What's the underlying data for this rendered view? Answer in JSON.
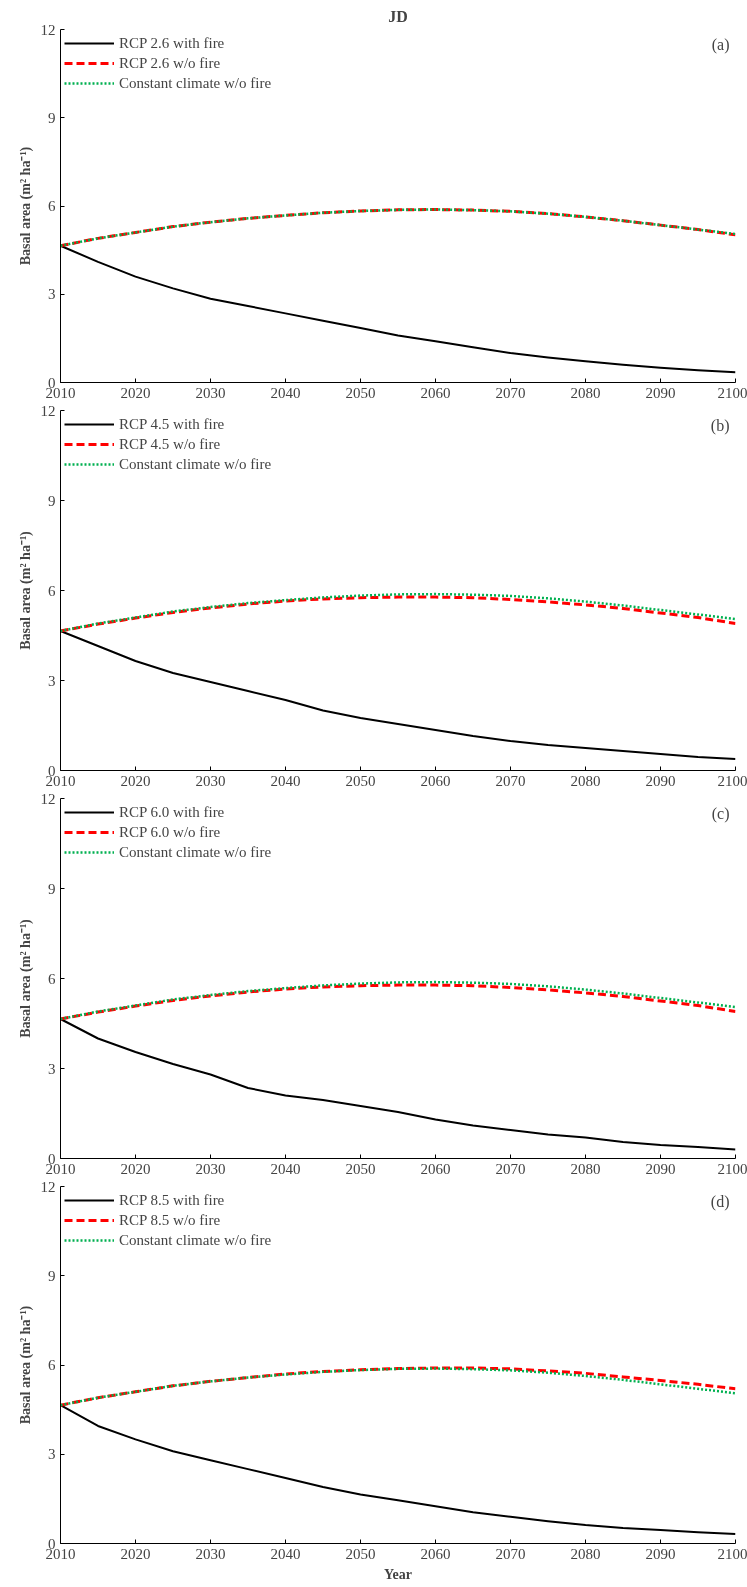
{
  "chart_data": [
    {
      "type": "line",
      "title": "JD",
      "ylabel": "Basal area (m² ha⁻¹)",
      "annotations": [
        "(a)"
      ],
      "legend": "top left",
      "grid": false,
      "x": [
        2010,
        2015,
        2020,
        2025,
        2030,
        2035,
        2040,
        2045,
        2050,
        2055,
        2060,
        2065,
        2070,
        2075,
        2080,
        2085,
        2090,
        2095,
        2100
      ],
      "xlim": [
        2010,
        2100
      ],
      "xticks": [
        2010,
        2020,
        2030,
        2040,
        2050,
        2060,
        2070,
        2080,
        2090,
        2100
      ],
      "ylim": [
        0,
        12
      ],
      "yticks": [
        0,
        3,
        6,
        9,
        12
      ],
      "series": [
        {
          "name": "RCP 2.6 with fire",
          "color": "#000000",
          "line_style": "solid",
          "values": [
            4.65,
            4.1,
            3.6,
            3.2,
            2.85,
            2.6,
            2.35,
            2.1,
            1.85,
            1.6,
            1.4,
            1.2,
            1.0,
            0.85,
            0.72,
            0.6,
            0.5,
            0.42,
            0.35
          ]
        },
        {
          "name": "RCP 2.6 w/o fire",
          "color": "#ff0000",
          "line_style": "dashed",
          "values": [
            4.65,
            4.9,
            5.1,
            5.3,
            5.45,
            5.58,
            5.68,
            5.77,
            5.83,
            5.87,
            5.88,
            5.86,
            5.82,
            5.74,
            5.63,
            5.5,
            5.35,
            5.2,
            5.02
          ]
        },
        {
          "name": "Constant climate w/o fire",
          "color": "#00b050",
          "line_style": "dotted",
          "values": [
            4.65,
            4.9,
            5.1,
            5.3,
            5.45,
            5.58,
            5.68,
            5.77,
            5.83,
            5.87,
            5.88,
            5.86,
            5.82,
            5.74,
            5.63,
            5.5,
            5.35,
            5.2,
            5.05
          ]
        }
      ]
    },
    {
      "type": "line",
      "ylabel": "Basal area (m² ha⁻¹)",
      "annotations": [
        "(b)"
      ],
      "legend": "top left",
      "grid": false,
      "x": [
        2010,
        2015,
        2020,
        2025,
        2030,
        2035,
        2040,
        2045,
        2050,
        2055,
        2060,
        2065,
        2070,
        2075,
        2080,
        2085,
        2090,
        2095,
        2100
      ],
      "xlim": [
        2010,
        2100
      ],
      "xticks": [
        2010,
        2020,
        2030,
        2040,
        2050,
        2060,
        2070,
        2080,
        2090,
        2100
      ],
      "ylim": [
        0,
        12
      ],
      "yticks": [
        0,
        3,
        6,
        9,
        12
      ],
      "series": [
        {
          "name": "RCP 4.5 with fire",
          "color": "#000000",
          "line_style": "solid",
          "values": [
            4.65,
            4.15,
            3.65,
            3.25,
            2.95,
            2.65,
            2.35,
            2.0,
            1.75,
            1.55,
            1.35,
            1.15,
            0.98,
            0.85,
            0.75,
            0.65,
            0.55,
            0.45,
            0.38
          ]
        },
        {
          "name": "RCP 4.5 w/o fire",
          "color": "#ff0000",
          "line_style": "dashed",
          "values": [
            4.65,
            4.88,
            5.08,
            5.27,
            5.42,
            5.55,
            5.65,
            5.72,
            5.76,
            5.78,
            5.78,
            5.76,
            5.7,
            5.62,
            5.52,
            5.4,
            5.25,
            5.1,
            4.9
          ]
        },
        {
          "name": "Constant climate w/o fire",
          "color": "#00b050",
          "line_style": "dotted",
          "values": [
            4.65,
            4.9,
            5.1,
            5.3,
            5.45,
            5.58,
            5.68,
            5.77,
            5.83,
            5.87,
            5.88,
            5.86,
            5.82,
            5.74,
            5.63,
            5.5,
            5.35,
            5.2,
            5.05
          ]
        }
      ]
    },
    {
      "type": "line",
      "ylabel": "Basal area (m² ha⁻¹)",
      "annotations": [
        "(c)"
      ],
      "legend": "top left",
      "grid": false,
      "x": [
        2010,
        2015,
        2020,
        2025,
        2030,
        2035,
        2040,
        2045,
        2050,
        2055,
        2060,
        2065,
        2070,
        2075,
        2080,
        2085,
        2090,
        2095,
        2100
      ],
      "xlim": [
        2010,
        2100
      ],
      "xticks": [
        2010,
        2020,
        2030,
        2040,
        2050,
        2060,
        2070,
        2080,
        2090,
        2100
      ],
      "ylim": [
        0,
        12
      ],
      "yticks": [
        0,
        3,
        6,
        9,
        12
      ],
      "series": [
        {
          "name": "RCP 6.0 with fire",
          "color": "#000000",
          "line_style": "solid",
          "values": [
            4.65,
            4.0,
            3.55,
            3.15,
            2.8,
            2.35,
            2.1,
            1.95,
            1.75,
            1.55,
            1.3,
            1.1,
            0.95,
            0.8,
            0.7,
            0.55,
            0.45,
            0.38,
            0.3
          ]
        },
        {
          "name": "RCP 6.0 w/o fire",
          "color": "#ff0000",
          "line_style": "dashed",
          "values": [
            4.65,
            4.88,
            5.08,
            5.27,
            5.42,
            5.55,
            5.65,
            5.72,
            5.76,
            5.78,
            5.78,
            5.76,
            5.7,
            5.62,
            5.52,
            5.4,
            5.25,
            5.1,
            4.9
          ]
        },
        {
          "name": "Constant climate w/o fire",
          "color": "#00b050",
          "line_style": "dotted",
          "values": [
            4.65,
            4.9,
            5.1,
            5.3,
            5.45,
            5.58,
            5.68,
            5.77,
            5.83,
            5.87,
            5.88,
            5.86,
            5.82,
            5.74,
            5.63,
            5.5,
            5.35,
            5.2,
            5.05
          ]
        }
      ]
    },
    {
      "type": "line",
      "xlabel": "Year",
      "ylabel": "Basal area (m² ha⁻¹)",
      "annotations": [
        "(d)"
      ],
      "legend": "top left",
      "grid": false,
      "x": [
        2010,
        2015,
        2020,
        2025,
        2030,
        2035,
        2040,
        2045,
        2050,
        2055,
        2060,
        2065,
        2070,
        2075,
        2080,
        2085,
        2090,
        2095,
        2100
      ],
      "xlim": [
        2010,
        2100
      ],
      "xticks": [
        2010,
        2020,
        2030,
        2040,
        2050,
        2060,
        2070,
        2080,
        2090,
        2100
      ],
      "ylim": [
        0,
        12
      ],
      "yticks": [
        0,
        3,
        6,
        9,
        12
      ],
      "series": [
        {
          "name": "RCP 8.5 with fire",
          "color": "#000000",
          "line_style": "solid",
          "values": [
            4.65,
            3.95,
            3.5,
            3.1,
            2.8,
            2.5,
            2.2,
            1.9,
            1.65,
            1.45,
            1.25,
            1.05,
            0.9,
            0.75,
            0.62,
            0.52,
            0.45,
            0.38,
            0.32
          ]
        },
        {
          "name": "RCP 8.5 w/o fire",
          "color": "#ff0000",
          "line_style": "dashed",
          "values": [
            4.65,
            4.9,
            5.1,
            5.3,
            5.45,
            5.58,
            5.7,
            5.78,
            5.84,
            5.88,
            5.9,
            5.9,
            5.87,
            5.8,
            5.72,
            5.6,
            5.48,
            5.35,
            5.2
          ]
        },
        {
          "name": "Constant climate w/o fire",
          "color": "#00b050",
          "line_style": "dotted",
          "values": [
            4.65,
            4.9,
            5.1,
            5.3,
            5.45,
            5.58,
            5.68,
            5.77,
            5.83,
            5.87,
            5.88,
            5.86,
            5.82,
            5.74,
            5.63,
            5.5,
            5.35,
            5.2,
            5.05
          ]
        }
      ]
    }
  ]
}
